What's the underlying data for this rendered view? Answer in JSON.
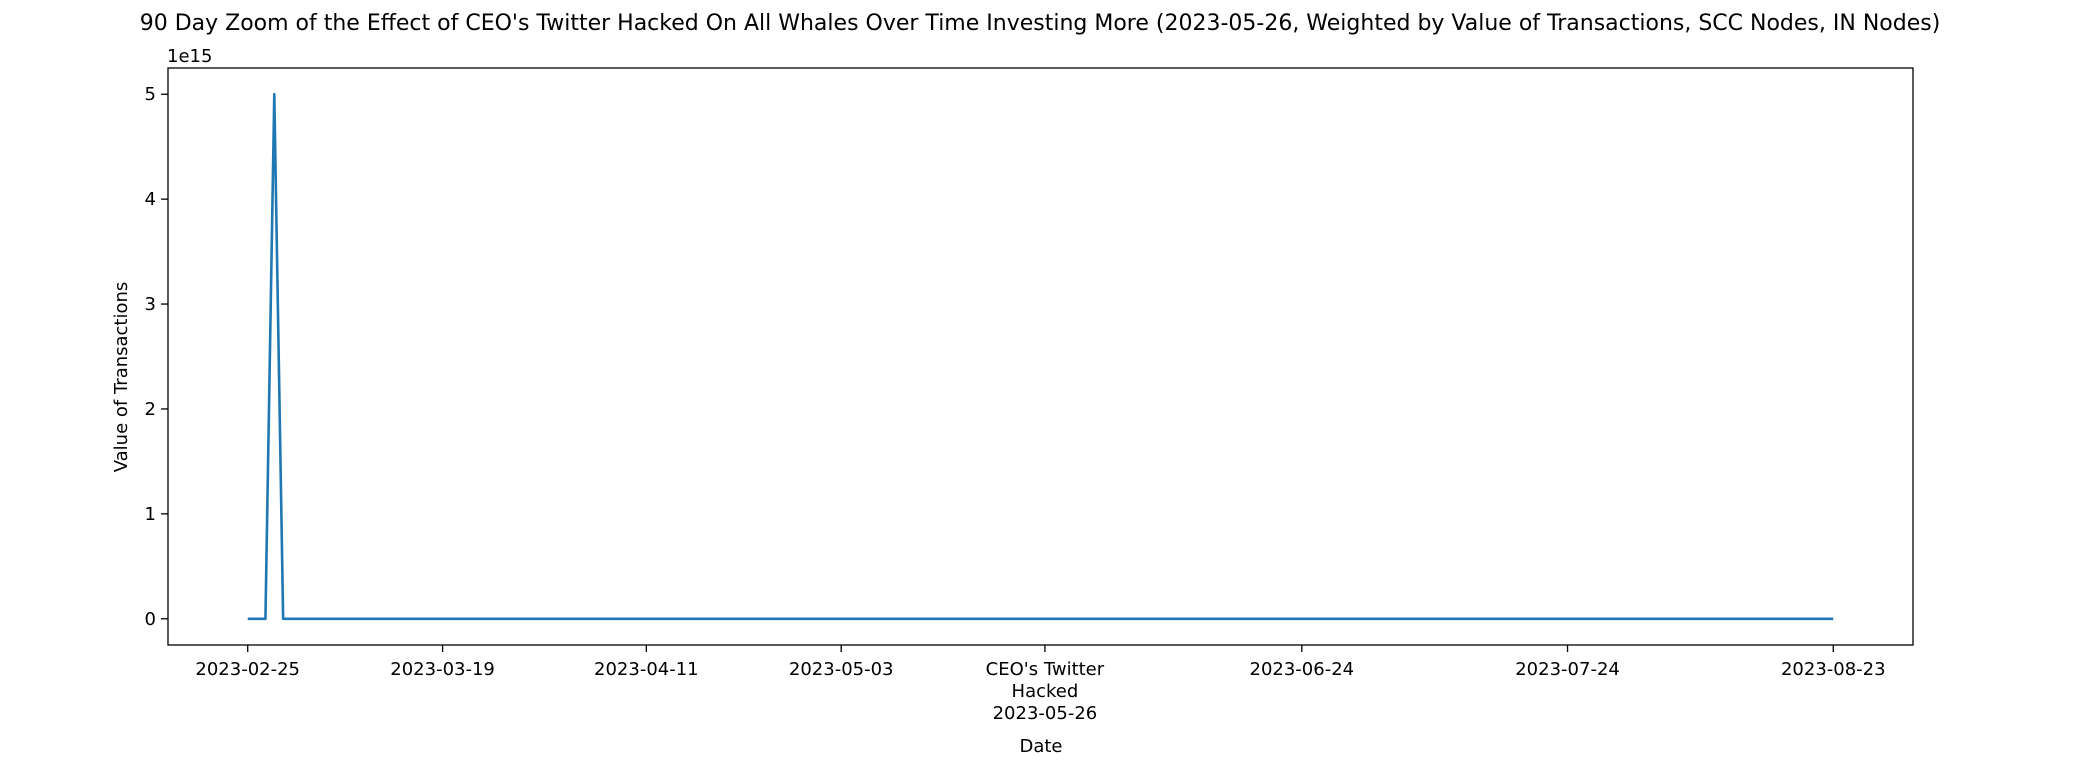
{
  "chart_data": {
    "type": "line",
    "title": "90 Day Zoom of the Effect of CEO's Twitter Hacked On All Whales Over Time Investing More (2023-05-26, Weighted by Value of Transactions, SCC Nodes, IN Nodes)",
    "xlabel": "Date",
    "ylabel": "Value of Transactions",
    "y_offset_text": "1e15",
    "y_scale": 1000000000000000.0,
    "ylim": [
      -250000000000000.0,
      5250000000000000.0
    ],
    "xlim": [
      "2023-02-16",
      "2023-09-01"
    ],
    "yticks": [
      0,
      1000000000000000.0,
      2000000000000000.0,
      3000000000000000.0,
      4000000000000000.0,
      5000000000000000.0
    ],
    "ytick_labels": [
      "0",
      "1",
      "2",
      "3",
      "4",
      "5"
    ],
    "xticks": [
      {
        "date": "2023-02-25",
        "label": "2023-02-25"
      },
      {
        "date": "2023-03-19",
        "label": "2023-03-19"
      },
      {
        "date": "2023-04-11",
        "label": "2023-04-11"
      },
      {
        "date": "2023-05-03",
        "label": "2023-05-03"
      },
      {
        "date": "2023-05-26",
        "label": "CEO's Twitter\nHacked\n2023-05-26"
      },
      {
        "date": "2023-06-24",
        "label": "2023-06-24"
      },
      {
        "date": "2023-07-24",
        "label": "2023-07-24"
      },
      {
        "date": "2023-08-23",
        "label": "2023-08-23"
      }
    ],
    "grid": false,
    "series": [
      {
        "color": "#1f77b4",
        "x": [
          "2023-02-25",
          "2023-02-27",
          "2023-02-28",
          "2023-03-01",
          "2023-08-23"
        ],
        "y": [
          0,
          0,
          5000000000000000.0,
          0,
          0
        ]
      }
    ]
  }
}
